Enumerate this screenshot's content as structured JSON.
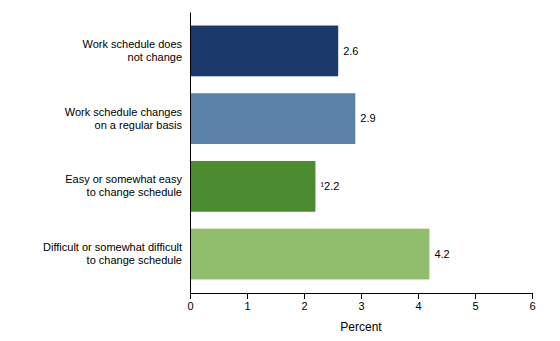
{
  "chart_data": {
    "type": "bar",
    "orientation": "horizontal",
    "categories": [
      "Difficult or somewhat difficult\nto change schedule",
      "Easy or somewhat easy\nto change schedule",
      "Work schedule changes\non a regular basis",
      "Work schedule does\nnot change"
    ],
    "values": [
      4.2,
      2.2,
      2.9,
      2.6
    ],
    "value_labels": [
      "4.2",
      "¹2.2",
      "2.9",
      "2.6"
    ],
    "colors": [
      "#90be6d",
      "#4d8b31",
      "#5b82a6",
      "#1b3a6b"
    ],
    "xlabel": "Percent",
    "xlim": [
      0,
      6
    ],
    "xticks": [
      0,
      1,
      2,
      3,
      4,
      5,
      6
    ],
    "data_labels": true,
    "grid": false
  }
}
